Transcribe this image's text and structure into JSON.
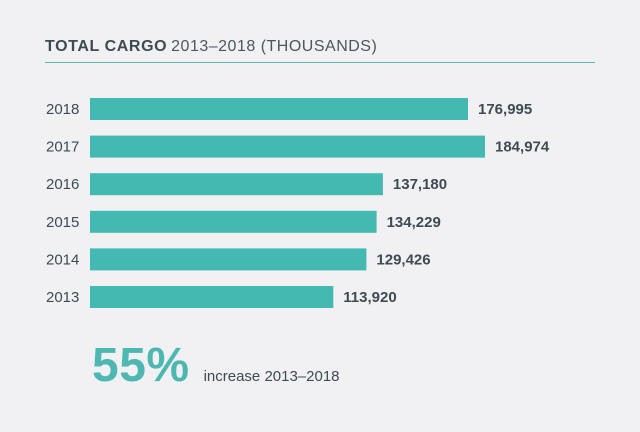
{
  "header": {
    "title_bold": "TOTAL CARGO",
    "title_rest": "2013–2018 (THOUSANDS)"
  },
  "colors": {
    "bar": "#44b9b2",
    "accent": "#4db8b1",
    "text": "#3d4b52",
    "background": "#f1f1f3"
  },
  "chart_data": {
    "type": "bar",
    "orientation": "horizontal",
    "categories": [
      "2018",
      "2017",
      "2016",
      "2015",
      "2014",
      "2013"
    ],
    "values": [
      176995,
      184974,
      137180,
      134229,
      129426,
      113920
    ],
    "value_labels": [
      "176,995",
      "184,974",
      "137,180",
      "134,229",
      "129,426",
      "113,920"
    ],
    "title": "TOTAL CARGO 2013–2018 (THOUSANDS)",
    "xlim": [
      0,
      184974
    ],
    "grid": false,
    "legend": "none"
  },
  "summary": {
    "value": "55%",
    "text": "increase 2013–2018"
  }
}
